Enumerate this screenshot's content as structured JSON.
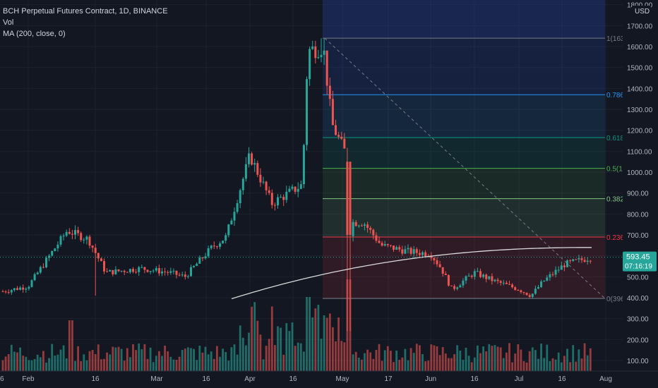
{
  "header": {
    "title": "BCH Perpetual Futures Contract, 1D, BINANCE",
    "vol_label": "Vol",
    "ma_label": "MA (200, close, 0)"
  },
  "axis": {
    "currency": "USD",
    "price_ticks": [
      "1800.00",
      "1700.00",
      "1600.00",
      "1500.00",
      "1400.00",
      "1300.00",
      "1200.00",
      "1100.00",
      "1000.00",
      "900.00",
      "800.00",
      "700.00",
      "600.00",
      "500.00",
      "400.00",
      "300.00",
      "200.00",
      "100.00"
    ],
    "date_ticks": [
      "Feb",
      "16",
      "Mar",
      "16",
      "Apr",
      "16",
      "May",
      "17",
      "Jun",
      "16",
      "Jul",
      "16",
      "Aug",
      "16"
    ]
  },
  "fib": {
    "levels": [
      {
        "label": "1(163",
        "price": 1640,
        "color": "#787b86"
      },
      {
        "label": "0.786",
        "price": 1370,
        "color": "#2196f3"
      },
      {
        "label": "0.618",
        "price": 1165,
        "color": "#089981"
      },
      {
        "label": "0.5(1",
        "price": 1018,
        "color": "#4caf50"
      },
      {
        "label": "0.382",
        "price": 873,
        "color": "#81c784"
      },
      {
        "label": "0.236",
        "price": 690,
        "color": "#f23645"
      },
      {
        "label": "0(396",
        "price": 396,
        "color": "#787b86"
      }
    ]
  },
  "last": {
    "price_label": "593.45",
    "countdown": "07:16:19",
    "price": 593.45
  },
  "colors": {
    "background": "#131722",
    "up": "#26a69a",
    "down": "#ef5350",
    "grid": "#1e222d",
    "text": "#b2b5be",
    "ma": "#d9d9d9"
  },
  "chart_data": {
    "type": "candlestick",
    "symbol": "BCH Perpetual Futures Contract",
    "interval": "1D",
    "exchange": "BINANCE",
    "ylim": [
      60,
      1840
    ],
    "series_close": [
      {
        "date": "Jan 20",
        "close": 430
      },
      {
        "date": "Feb 1",
        "close": 455
      },
      {
        "date": "Feb 10",
        "close": 720
      },
      {
        "date": "Feb 20",
        "close": 680
      },
      {
        "date": "Mar 1",
        "close": 520
      },
      {
        "date": "Mar 10",
        "close": 540
      },
      {
        "date": "Mar 20",
        "close": 520
      },
      {
        "date": "Mar 30",
        "close": 520
      },
      {
        "date": "Apr 10",
        "close": 640
      },
      {
        "date": "Apr 16",
        "close": 1080
      },
      {
        "date": "Apr 25",
        "close": 850
      },
      {
        "date": "May 5",
        "close": 940
      },
      {
        "date": "May 10",
        "close": 1580
      },
      {
        "date": "May 15",
        "close": 1230
      },
      {
        "date": "May 19",
        "close": 700
      },
      {
        "date": "May 25",
        "close": 760
      },
      {
        "date": "Jun 5",
        "close": 620
      },
      {
        "date": "Jun 16",
        "close": 610
      },
      {
        "date": "Jun 25",
        "close": 440
      },
      {
        "date": "Jul 5",
        "close": 520
      },
      {
        "date": "Jul 20",
        "close": 410
      },
      {
        "date": "Aug 1",
        "close": 540
      },
      {
        "date": "Aug 8",
        "close": 593.45
      }
    ],
    "moving_average": {
      "name": "MA (200, close, 0)",
      "start": "Apr 10",
      "start_value": 395,
      "end": "Aug 10",
      "end_value": 640
    }
  }
}
